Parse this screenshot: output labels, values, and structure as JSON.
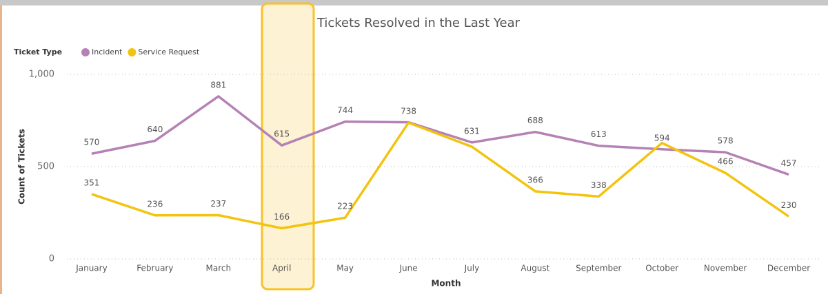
{
  "chart_data": {
    "type": "line",
    "title": "Tickets Resolved in the Last Year",
    "legend_title": "Ticket Type",
    "x_label": "Month",
    "y_label": "Count of Tickets",
    "categories": [
      "January",
      "February",
      "March",
      "April",
      "May",
      "June",
      "July",
      "August",
      "September",
      "October",
      "November",
      "December"
    ],
    "series": [
      {
        "name": "Incident",
        "color": "#b482b4",
        "values": [
          570,
          640,
          881,
          615,
          744,
          740,
          631,
          688,
          613,
          594,
          578,
          457
        ],
        "value_labels": [
          "570",
          "640",
          "881",
          "615",
          "744",
          null,
          "631",
          "688",
          "613",
          "594",
          "578",
          "457"
        ]
      },
      {
        "name": "Service Request",
        "color": "#f2c40f",
        "values": [
          351,
          236,
          237,
          166,
          223,
          738,
          608,
          366,
          338,
          628,
          466,
          230
        ],
        "value_labels": [
          "351",
          "236",
          "237",
          "166",
          "223",
          "738",
          null,
          "366",
          "338",
          null,
          "466",
          "230"
        ]
      }
    ],
    "ylim": [
      0,
      1000
    ],
    "yticks": [
      0,
      500,
      {
        "value": 1000,
        "label": "1,000"
      }
    ],
    "grid": true
  }
}
